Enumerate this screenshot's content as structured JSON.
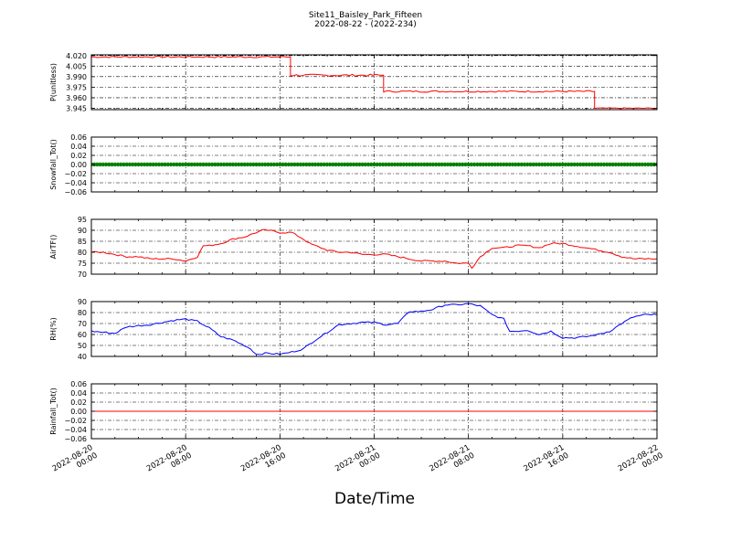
{
  "figure": {
    "title_line1": "Site11_Baisley_Park_Fifteen",
    "title_line2": "2022-08-22 - (2022-234)",
    "xlabel": "Date/Time",
    "xtick_labels": [
      [
        "2022-08-20",
        "00:00"
      ],
      [
        "2022-08-20",
        "08:00"
      ],
      [
        "2022-08-20",
        "16:00"
      ],
      [
        "2022-08-21",
        "00:00"
      ],
      [
        "2022-08-21",
        "08:00"
      ],
      [
        "2022-08-21",
        "16:00"
      ],
      [
        "2022-08-22",
        "00:00"
      ]
    ]
  },
  "chart_data": [
    {
      "type": "line",
      "ylabel": "P(unitless)",
      "color": "#ff0000",
      "ylim": [
        3.943,
        4.021
      ],
      "xlim_hours": [
        0,
        48
      ],
      "x_start": "2022-08-20 00:00",
      "yticks": [
        "4.020",
        "4.005",
        "3.990",
        "3.975",
        "3.960",
        "3.945"
      ],
      "ytick_values": [
        4.02,
        4.005,
        3.99,
        3.975,
        3.96,
        3.945
      ],
      "segments": [
        {
          "start_hour": 0,
          "end_hour": 16.9,
          "level": 4.018,
          "noise": 0.0012
        },
        {
          "start_hour": 16.9,
          "end_hour": 24.8,
          "level": 3.992,
          "noise": 0.0015
        },
        {
          "start_hour": 24.8,
          "end_hour": 42.7,
          "level": 3.969,
          "noise": 0.0012
        },
        {
          "start_hour": 42.7,
          "end_hour": 48,
          "level": 3.945,
          "noise": 0.0008
        }
      ],
      "grid": true
    },
    {
      "type": "scatter",
      "ylabel": "Snowfall_Tot()",
      "color": "#008000",
      "ylim": [
        -0.06,
        0.06
      ],
      "yticks": [
        "0.06",
        "0.04",
        "0.02",
        "0.00",
        "−0.02",
        "−0.04",
        "−0.06"
      ],
      "ytick_values": [
        0.06,
        0.04,
        0.02,
        0.0,
        -0.02,
        -0.04,
        -0.06
      ],
      "constant_value": 0.0,
      "grid": true
    },
    {
      "type": "line",
      "ylabel": "AirTF()",
      "color": "#ff0000",
      "ylim": [
        70,
        95
      ],
      "yticks": [
        "95",
        "90",
        "85",
        "80",
        "75",
        "70"
      ],
      "ytick_values": [
        95,
        90,
        85,
        80,
        75,
        70
      ],
      "x_hours": [
        0,
        1,
        2,
        3,
        4,
        5,
        6,
        7,
        8,
        9,
        9.5,
        10,
        11,
        12,
        13,
        14,
        14.5,
        15,
        16,
        17,
        18,
        18.5,
        19,
        20,
        21,
        22,
        23,
        24,
        25,
        26,
        27,
        28,
        29,
        30,
        31,
        32,
        32.3,
        33,
        33.5,
        34,
        35,
        36,
        37,
        38,
        39,
        40,
        41,
        42,
        43,
        44,
        45,
        46,
        47,
        48
      ],
      "values": [
        80,
        80,
        79,
        78,
        78,
        77,
        77,
        77,
        76,
        78,
        83,
        83,
        84,
        86,
        87,
        89,
        90,
        90,
        89,
        89,
        86,
        84,
        83,
        81,
        80,
        80,
        79,
        79,
        79,
        78,
        77,
        76,
        76,
        76,
        75,
        75,
        73,
        78,
        80,
        82,
        82,
        83,
        83,
        82,
        84,
        84,
        83,
        82,
        81,
        80,
        78,
        77,
        77,
        77
      ],
      "grid": true
    },
    {
      "type": "line",
      "ylabel": "RH(%)",
      "color": "#0000ff",
      "ylim": [
        40,
        90
      ],
      "yticks": [
        "90",
        "80",
        "70",
        "60",
        "50",
        "40"
      ],
      "ytick_values": [
        90,
        80,
        70,
        60,
        50,
        40
      ],
      "x_hours": [
        0,
        1,
        2,
        3,
        4,
        5,
        6,
        7,
        8,
        9,
        10,
        10.5,
        11,
        12,
        13,
        13.5,
        14,
        15,
        16,
        17,
        18,
        19,
        20,
        21,
        22,
        23,
        24,
        25,
        26,
        27,
        28,
        29,
        30,
        31,
        32,
        33,
        34,
        35,
        35.5,
        36,
        37,
        38,
        39,
        40,
        41,
        42,
        43,
        44,
        45,
        46,
        47,
        48
      ],
      "values": [
        63,
        62,
        61,
        67,
        68,
        69,
        71,
        73,
        74,
        72,
        66,
        62,
        58,
        55,
        50,
        47,
        42,
        43,
        42,
        44,
        47,
        55,
        62,
        69,
        70,
        71,
        71,
        69,
        70,
        81,
        81,
        83,
        87,
        87,
        88,
        86,
        78,
        74,
        63,
        63,
        64,
        60,
        63,
        57,
        57,
        58,
        60,
        63,
        70,
        76,
        78,
        78
      ],
      "grid": true
    },
    {
      "type": "line",
      "ylabel": "Rainfall_Tot()",
      "color": "#ff0000",
      "ylim": [
        -0.06,
        0.06
      ],
      "yticks": [
        "0.06",
        "0.04",
        "0.02",
        "0.00",
        "−0.02",
        "−0.04",
        "−0.06"
      ],
      "ytick_values": [
        0.06,
        0.04,
        0.02,
        0.0,
        -0.02,
        -0.04,
        -0.06
      ],
      "constant_value": 0.0,
      "grid": true
    }
  ]
}
